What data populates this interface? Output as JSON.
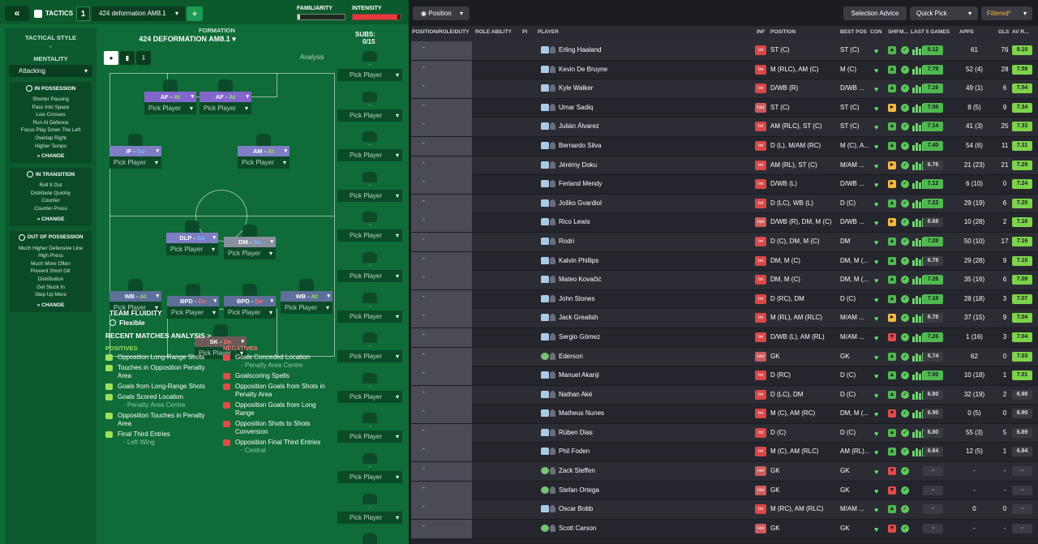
{
  "header": {
    "back_icon": "double-chevron-left",
    "tactics_label": "TACTICS",
    "tactic_number": "1",
    "tactic_name": "424 deformation AM8.1",
    "add_label": "+",
    "familiarity_label": "FAMILIARITY",
    "familiarity_level": 0.05,
    "intensity_label": "INTENSITY",
    "intensity_level": 0.95
  },
  "style": {
    "tactical_style_label": "TACTICAL STYLE",
    "tactical_style_value": "-",
    "mentality_label": "MENTALITY",
    "mentality_value": "Attacking",
    "in_possession": {
      "title": "IN POSSESSION",
      "items": [
        "Shorter Passing",
        "Pass Into Space",
        "Low Crosses",
        "Run At Defence",
        "Focus Play Down The Left",
        "Overlap Right",
        "Higher Tempo"
      ],
      "change": "CHANGE"
    },
    "in_transition": {
      "title": "IN TRANSITION",
      "items": [
        "Roll It Out",
        "Distribute Quickly",
        "Counter",
        "Counter-Press"
      ],
      "change": "CHANGE"
    },
    "out_of_possession": {
      "title": "OUT OF POSSESSION",
      "items": [
        "Much Higher Defensive Line",
        "High Press",
        "Much More Often",
        "Prevent Short GK",
        "Distribution",
        "Get Stuck In",
        "Step Up More"
      ],
      "change": "CHANGE"
    }
  },
  "formation": {
    "label": "FORMATION",
    "name": "424 DEFORMATION AM8.1",
    "analysis": "Analysis",
    "pick_player": "Pick Player",
    "positions": [
      {
        "role": "AF",
        "duty": "At"
      },
      {
        "role": "AF",
        "duty": "At"
      },
      {
        "role": "IF",
        "duty": "Su"
      },
      {
        "role": "AM",
        "duty": "At"
      },
      {
        "role": "DLP",
        "duty": "Su"
      },
      {
        "role": "DM",
        "duty": "Su"
      },
      {
        "role": "WB",
        "duty": "At"
      },
      {
        "role": "BPD",
        "duty": "De"
      },
      {
        "role": "BPD",
        "duty": "De"
      },
      {
        "role": "WB",
        "duty": "At"
      },
      {
        "role": "SK",
        "duty": "De"
      }
    ],
    "fluidity_label": "TEAM FLUIDITY",
    "fluidity_value": "Flexible"
  },
  "subs": {
    "label": "SUBS:",
    "value": "0/15",
    "slot_dash": "-",
    "pick_player": "Pick Player"
  },
  "analysis": {
    "title": "RECENT MATCHES ANALYSIS >",
    "positives_label": "POSITIVES",
    "negatives_label": "NEGATIVES",
    "positives": [
      {
        "text": "Opposition Long-Range Shots",
        "sub": ""
      },
      {
        "text": "Touches in Opposition Penalty Area",
        "sub": ""
      },
      {
        "text": "Goals from Long-Range Shots",
        "sub": ""
      },
      {
        "text": "Goals Scored Location",
        "sub": "- Penalty Area Centre"
      },
      {
        "text": "Opposition Touches in Penalty Area",
        "sub": ""
      },
      {
        "text": "Final Third Entries",
        "sub": "- Left Wing"
      }
    ],
    "negatives": [
      {
        "text": "Goals Conceded Location",
        "sub": "- Penalty Area Centre"
      },
      {
        "text": "Goalscoring Spells",
        "sub": ""
      },
      {
        "text": "Opposition Goals from Shots in Penalty Area",
        "sub": ""
      },
      {
        "text": "Opposition Goals from Long Range",
        "sub": ""
      },
      {
        "text": "Opposition Shots to Shots Conversion",
        "sub": ""
      },
      {
        "text": "Opposition Final Third Entries",
        "sub": "- Central"
      }
    ]
  },
  "table": {
    "position_filter": "Position",
    "selection_advice": "Selection Advice",
    "quick_pick": "Quick Pick",
    "filtered": "Filtered*",
    "columns": [
      "POSITION/ROLE/DUTY",
      "ROLE ABILITY",
      "PI",
      "PLAYER",
      "INF",
      "POSITION",
      "BEST POS",
      "CON",
      "SHP",
      "M...",
      "LAST 5 GAMES",
      "APPS",
      "GLS",
      "AV R..."
    ],
    "placeholder": "-",
    "rows": [
      {
        "name": "Erling Haaland",
        "inf": "Int",
        "position": "ST (C)",
        "best": "ST (C)",
        "shp": "up",
        "rating": "8.12",
        "apps": "61",
        "gls": "76",
        "av": "8.10",
        "gk": false
      },
      {
        "name": "Kevin De Bruyne",
        "inf": "Int",
        "position": "M (RLC), AM (C)",
        "best": "M (C)",
        "shp": "up",
        "rating": "7.79",
        "apps": "52 (4)",
        "gls": "28",
        "av": "7.59",
        "gk": false
      },
      {
        "name": "Kyle Walker",
        "inf": "Int",
        "position": "D/WB (R)",
        "best": "D/WB ...",
        "shp": "up",
        "rating": "7.16",
        "apps": "49 (1)",
        "gls": "6",
        "av": "7.54",
        "gk": false
      },
      {
        "name": "Umar Sadiq",
        "inf": "Hol",
        "position": "ST (C)",
        "best": "ST (C)",
        "shp": "mid",
        "rating": "7.56",
        "apps": "8 (5)",
        "gls": "9",
        "av": "7.34",
        "gk": false
      },
      {
        "name": "Julián Álvarez",
        "inf": "Int",
        "position": "AM (RLC), ST (C)",
        "best": "ST (C)",
        "shp": "up",
        "rating": "7.14",
        "apps": "41 (3)",
        "gls": "25",
        "av": "7.33",
        "gk": false
      },
      {
        "name": "Bernardo Silva",
        "inf": "Int",
        "position": "D (L), M/AM (RC)",
        "best": "M (C), A...",
        "shp": "up",
        "rating": "7.40",
        "apps": "54 (6)",
        "gls": "11",
        "av": "7.31",
        "gk": false
      },
      {
        "name": "Jérémy Doku",
        "inf": "Int",
        "position": "AM (RL), ST (C)",
        "best": "M/AM ...",
        "shp": "mid",
        "rating": "6.76",
        "apps": "21 (23)",
        "gls": "21",
        "av": "7.29",
        "gk": false
      },
      {
        "name": "Ferland Mendy",
        "inf": "Int",
        "position": "D/WB (L)",
        "best": "D/WB ...",
        "shp": "mid",
        "rating": "7.12",
        "apps": "6 (10)",
        "gls": "0",
        "av": "7.24",
        "gk": false
      },
      {
        "name": "Joško Gvardiol",
        "inf": "Int",
        "position": "D (LC), WB (L)",
        "best": "D (C)",
        "shp": "up",
        "rating": "7.22",
        "apps": "29 (19)",
        "gls": "6",
        "av": "7.20",
        "gk": false
      },
      {
        "name": "Rico Lewis",
        "inf": "Hol",
        "position": "D/WB (R), DM, M (C)",
        "best": "D/WB ...",
        "shp": "mid",
        "rating": "6.68",
        "apps": "10 (28)",
        "gls": "2",
        "av": "7.16",
        "gk": false
      },
      {
        "name": "Rodri",
        "inf": "Int",
        "position": "D (C), DM, M (C)",
        "best": "DM",
        "shp": "up",
        "rating": "7.28",
        "apps": "50 (10)",
        "gls": "17",
        "av": "7.16",
        "gk": false
      },
      {
        "name": "Kalvin Phillips",
        "inf": "Int",
        "position": "DM, M (C)",
        "best": "DM, M (...",
        "shp": "up",
        "rating": "6.78",
        "apps": "29 (28)",
        "gls": "9",
        "av": "7.10",
        "gk": false
      },
      {
        "name": "Mateo Kovačić",
        "inf": "Int",
        "position": "DM, M (C)",
        "best": "DM, M (...",
        "shp": "up",
        "rating": "7.26",
        "apps": "35 (16)",
        "gls": "6",
        "av": "7.09",
        "gk": false
      },
      {
        "name": "John Stones",
        "inf": "Int",
        "position": "D (RC), DM",
        "best": "D (C)",
        "shp": "up",
        "rating": "7.18",
        "apps": "28 (18)",
        "gls": "3",
        "av": "7.07",
        "gk": false
      },
      {
        "name": "Jack Grealish",
        "inf": "Int",
        "position": "M (RL), AM (RLC)",
        "best": "M/AM ...",
        "shp": "mid",
        "rating": "6.78",
        "apps": "37 (15)",
        "gls": "9",
        "av": "7.04",
        "gk": false
      },
      {
        "name": "Sergio Gómez",
        "inf": "Int",
        "position": "D/WB (L), AM (RL)",
        "best": "M/AM ...",
        "shp": "down",
        "rating": "7.26",
        "apps": "1 (16)",
        "gls": "3",
        "av": "7.04",
        "gk": false
      },
      {
        "name": "Ederson",
        "inf": "Hol",
        "position": "GK",
        "best": "GK",
        "shp": "up",
        "rating": "6.74",
        "apps": "62",
        "gls": "0",
        "av": "7.03",
        "gk": true
      },
      {
        "name": "Manuel Akanji",
        "inf": "Int",
        "position": "D (RC)",
        "best": "D (C)",
        "shp": "up",
        "rating": "7.00",
        "apps": "10 (18)",
        "gls": "1",
        "av": "7.01",
        "gk": false
      },
      {
        "name": "Nathan Aké",
        "inf": "Int",
        "position": "D (LC), DM",
        "best": "D (C)",
        "shp": "up",
        "rating": "6.80",
        "apps": "32 (19)",
        "gls": "2",
        "av": "6.98",
        "gk": false
      },
      {
        "name": "Matheus Nunes",
        "inf": "Int",
        "position": "M (C), AM (RC)",
        "best": "DM, M (...",
        "shp": "down",
        "rating": "6.90",
        "apps": "0 (5)",
        "gls": "0",
        "av": "6.90",
        "gk": false
      },
      {
        "name": "Rúben Dias",
        "inf": "Int",
        "position": "D (C)",
        "best": "D (C)",
        "shp": "up",
        "rating": "6.80",
        "apps": "55 (3)",
        "gls": "5",
        "av": "6.89",
        "gk": false
      },
      {
        "name": "Phil Foden",
        "inf": "Int",
        "position": "M (C), AM (RLC)",
        "best": "AM (RL)...",
        "shp": "up",
        "rating": "6.84",
        "apps": "12 (5)",
        "gls": "1",
        "av": "6.84",
        "gk": false
      },
      {
        "name": "Zack Steffen",
        "inf": "Hol",
        "position": "GK",
        "best": "GK",
        "shp": "down",
        "rating": "-",
        "apps": "-",
        "gls": "-",
        "av": "-",
        "gk": true
      },
      {
        "name": "Stefan Ortega",
        "inf": "Hol",
        "position": "GK",
        "best": "GK",
        "shp": "down",
        "rating": "-",
        "apps": "-",
        "gls": "-",
        "av": "-",
        "gk": true
      },
      {
        "name": "Oscar Bobb",
        "inf": "Int",
        "position": "M (RC), AM (RLC)",
        "best": "M/AM ...",
        "shp": "up",
        "rating": "-",
        "apps": "0",
        "gls": "0",
        "av": "-",
        "gk": false
      },
      {
        "name": "Scott Carson",
        "inf": "Hol",
        "position": "GK",
        "best": "GK",
        "shp": "down",
        "rating": "-",
        "apps": "-",
        "gls": "-",
        "av": "-",
        "gk": true
      }
    ]
  },
  "colors": {
    "pitch_green": "#1a8a3f",
    "panel_green": "#0f6b37",
    "rating_green": "#4fb84f",
    "accent_orange": "#f4b942"
  }
}
